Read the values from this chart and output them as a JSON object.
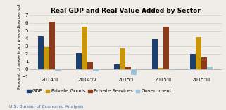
{
  "title": "Real GDP and Real Value Added by Sector",
  "ylabel": "Percent change from preceding period",
  "source": "U.S. Bureau of Economic Analysis",
  "categories": [
    "2014:II",
    "2014:IV",
    "2015:I",
    "2015:II",
    "2015:III"
  ],
  "series": {
    "GDP": [
      4.3,
      2.1,
      0.6,
      3.9,
      2.0
    ],
    "Private Goods": [
      2.9,
      5.5,
      2.7,
      0.2,
      4.2
    ],
    "Private Services": [
      6.2,
      1.0,
      0.4,
      5.5,
      1.5
    ],
    "Government": [
      -0.2,
      -0.3,
      -0.7,
      -0.1,
      0.4
    ]
  },
  "colors": {
    "GDP": "#1c3f6e",
    "Private Goods": "#c8960c",
    "Private Services": "#8b3a1a",
    "Government": "#9ac3d9"
  },
  "ylim": [
    -1.0,
    7.0
  ],
  "yticks": [
    -1.0,
    0.0,
    1.0,
    2.0,
    3.0,
    4.0,
    5.0,
    6.0,
    7.0
  ],
  "background_color": "#f0ede8",
  "grid_color": "#d8d4cc",
  "title_fontsize": 6.5,
  "axis_fontsize": 4.5,
  "tick_fontsize": 5,
  "legend_fontsize": 5,
  "source_fontsize": 4.5,
  "bar_width": 0.15
}
